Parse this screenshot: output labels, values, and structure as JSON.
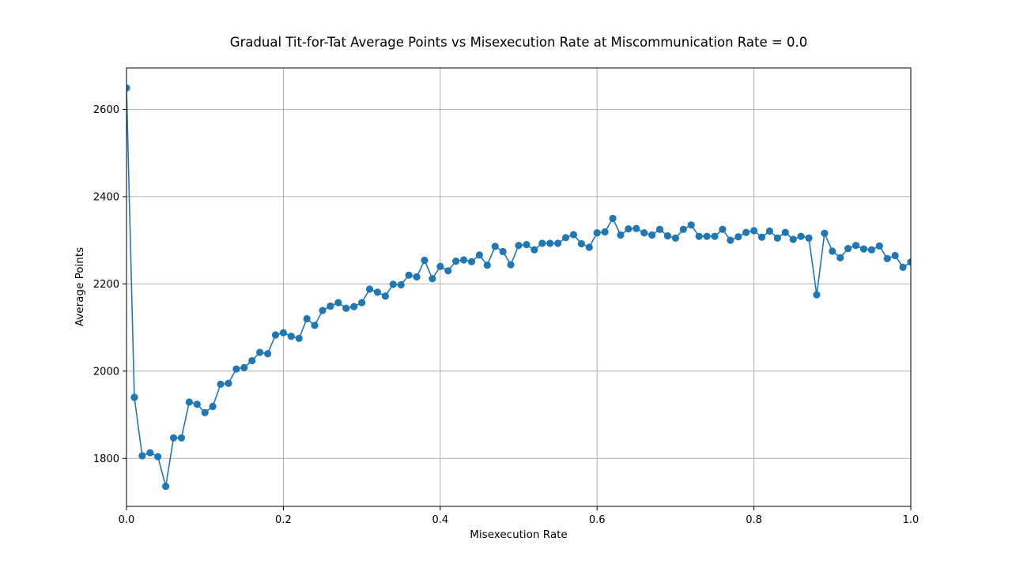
{
  "chart_data": {
    "type": "line",
    "title": "Gradual Tit-for-Tat Average Points vs Misexecution Rate at Miscommunication Rate = 0.0",
    "xlabel": "Misexecution Rate",
    "ylabel": "Average Points",
    "xlim": [
      0.0,
      1.0
    ],
    "ylim": [
      1690,
      2695
    ],
    "xticks": [
      0.0,
      0.2,
      0.4,
      0.6,
      0.8,
      1.0
    ],
    "xtick_labels": [
      "0.0",
      "0.2",
      "0.4",
      "0.6",
      "0.8",
      "1.0"
    ],
    "yticks": [
      1800,
      2000,
      2200,
      2400,
      2600
    ],
    "ytick_labels": [
      "1800",
      "2000",
      "2200",
      "2400",
      "2600"
    ],
    "grid": true,
    "marker": "circle",
    "color": "#1f77b4",
    "x": [
      0.0,
      0.01,
      0.02,
      0.03,
      0.04,
      0.05,
      0.06,
      0.07,
      0.08,
      0.09,
      0.1,
      0.11,
      0.12,
      0.13,
      0.14,
      0.15,
      0.16,
      0.17,
      0.18,
      0.19,
      0.2,
      0.21,
      0.22,
      0.23,
      0.24,
      0.25,
      0.26,
      0.27,
      0.28,
      0.29,
      0.3,
      0.31,
      0.32,
      0.33,
      0.34,
      0.35,
      0.36,
      0.37,
      0.38,
      0.39,
      0.4,
      0.41,
      0.42,
      0.43,
      0.44,
      0.45,
      0.46,
      0.47,
      0.48,
      0.49,
      0.5,
      0.51,
      0.52,
      0.53,
      0.54,
      0.55,
      0.56,
      0.57,
      0.58,
      0.59,
      0.6,
      0.61,
      0.62,
      0.63,
      0.64,
      0.65,
      0.66,
      0.67,
      0.68,
      0.69,
      0.7,
      0.71,
      0.72,
      0.73,
      0.74,
      0.75,
      0.76,
      0.77,
      0.78,
      0.79,
      0.8,
      0.81,
      0.82,
      0.83,
      0.84,
      0.85,
      0.86,
      0.87,
      0.88,
      0.89,
      0.9,
      0.91,
      0.92,
      0.93,
      0.94,
      0.95,
      0.96,
      0.97,
      0.98,
      0.99,
      1.0
    ],
    "y": [
      2649,
      1940,
      1806,
      1813,
      1804,
      1736,
      1847,
      1847,
      1929,
      1924,
      1905,
      1919,
      1970,
      1972,
      2005,
      2008,
      2024,
      2043,
      2040,
      2083,
      2088,
      2080,
      2075,
      2120,
      2105,
      2139,
      2149,
      2157,
      2144,
      2148,
      2157,
      2188,
      2181,
      2172,
      2199,
      2198,
      2220,
      2216,
      2254,
      2212,
      2240,
      2230,
      2252,
      2255,
      2251,
      2266,
      2243,
      2286,
      2274,
      2244,
      2288,
      2290,
      2278,
      2293,
      2293,
      2293,
      2306,
      2313,
      2292,
      2284,
      2317,
      2319,
      2350,
      2312,
      2326,
      2327,
      2317,
      2312,
      2325,
      2310,
      2305,
      2325,
      2335,
      2309,
      2309,
      2309,
      2325,
      2300,
      2308,
      2318,
      2322,
      2307,
      2321,
      2305,
      2318,
      2302,
      2309,
      2305,
      2175,
      2316,
      2275,
      2260,
      2281,
      2288,
      2280,
      2278,
      2287,
      2258,
      2265,
      2238,
      2250
    ]
  }
}
